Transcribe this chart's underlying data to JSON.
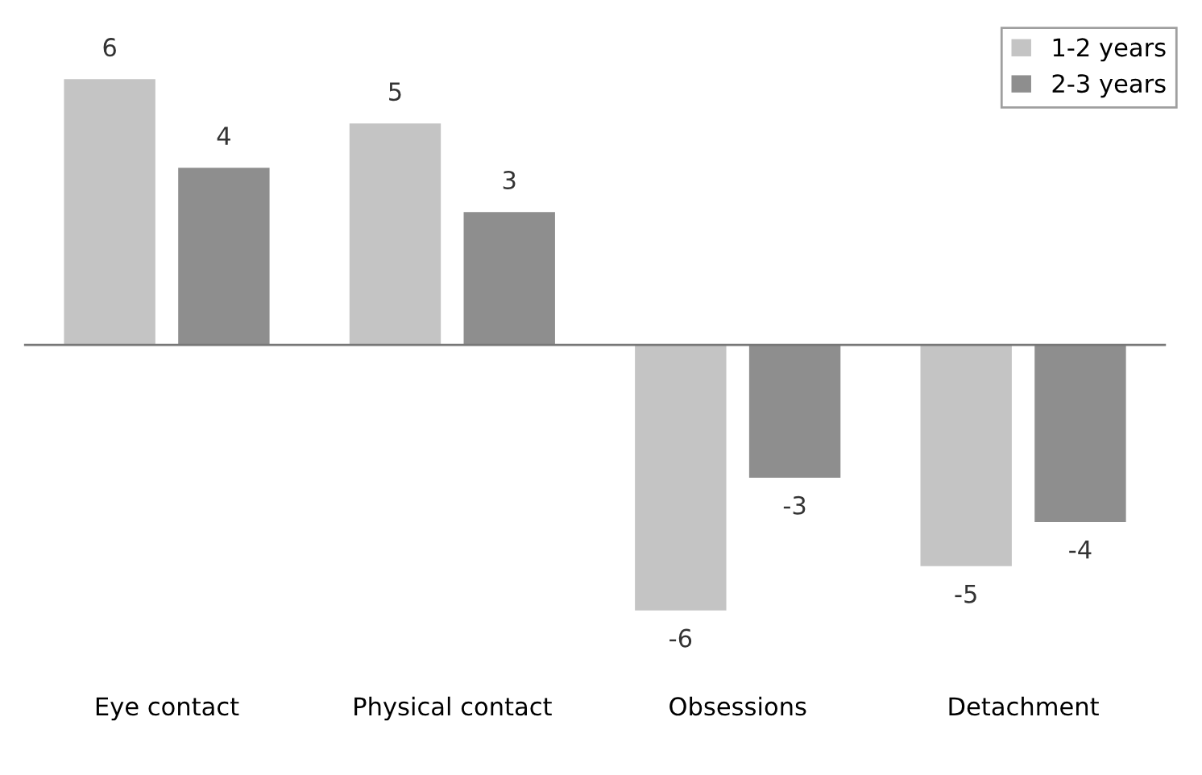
{
  "chart_data": {
    "type": "bar",
    "categories": [
      "Eye contact",
      "Physical contact",
      "Obsessions",
      "Detachment"
    ],
    "series": [
      {
        "name": "1-2 years",
        "color": "#c4c4c4",
        "values": [
          6,
          5,
          -6,
          -5
        ]
      },
      {
        "name": "2-3 years",
        "color": "#8e8e8e",
        "values": [
          4,
          3,
          -3,
          -4
        ]
      }
    ],
    "data_labels": true,
    "legend": "top right",
    "grid": false
  }
}
